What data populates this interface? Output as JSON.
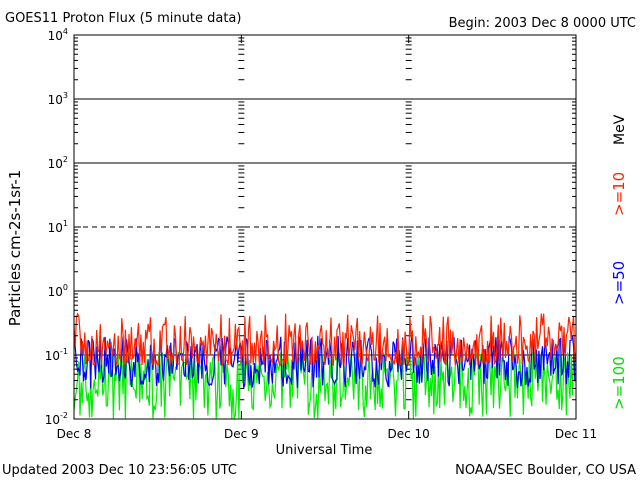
{
  "header": {
    "title": "GOES11 Proton Flux (5 minute data)",
    "begin": "Begin: 2003 Dec 8 0000 UTC"
  },
  "footer": {
    "updated": "Updated 2003 Dec 10 23:56:05 UTC",
    "credit": "NOAA/SEC Boulder, CO USA"
  },
  "chart_data": {
    "type": "line",
    "title": "GOES11 Proton Flux (5 minute data)",
    "xlabel": "Universal Time",
    "ylabel": "Particles cm-2s-1sr-1",
    "y_scale": "log",
    "ylim": [
      0.01,
      10000
    ],
    "y_ticks": [
      {
        "base": "10",
        "exp": "-2"
      },
      {
        "base": "10",
        "exp": "-1"
      },
      {
        "base": "10",
        "exp": "0"
      },
      {
        "base": "10",
        "exp": "1"
      },
      {
        "base": "10",
        "exp": "2"
      },
      {
        "base": "10",
        "exp": "3"
      },
      {
        "base": "10",
        "exp": "4"
      }
    ],
    "x_ticks": [
      "Dec 8",
      "Dec 9",
      "Dec 10",
      "Dec 11"
    ],
    "xlim_days": [
      0,
      3
    ],
    "grid": true,
    "dashed_y_gridline": 10,
    "unit_label": "MeV",
    "series": [
      {
        "name": ">=10",
        "color": "#ff2200",
        "typical_value": 0.14,
        "min_value": 0.07,
        "max_value": 0.45
      },
      {
        "name": ">=50",
        "color": "#0000ff",
        "typical_value": 0.08,
        "min_value": 0.03,
        "max_value": 0.2
      },
      {
        "name": ">=100",
        "color": "#00ee00",
        "typical_value": 0.04,
        "min_value": 0.01,
        "max_value": 0.11
      }
    ]
  }
}
